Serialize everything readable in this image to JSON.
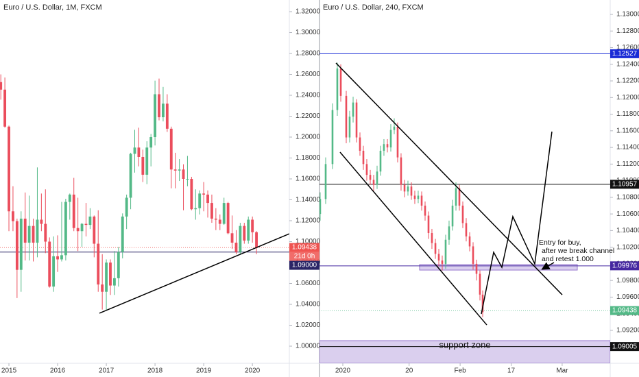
{
  "chart_data": [
    {
      "type": "candlestick",
      "title": "Euro / U.S. Dollar, 1M, FXCM",
      "x": [
        -2,
        -1,
        0,
        1,
        2,
        3,
        4,
        5,
        6,
        7,
        8,
        9,
        10,
        11,
        12,
        13,
        14,
        15,
        16,
        17,
        18,
        19,
        20,
        21,
        22,
        23,
        24,
        25,
        26,
        27,
        28,
        29,
        30,
        31,
        32,
        33,
        34,
        35,
        36,
        37,
        38,
        39,
        40,
        41,
        42,
        43,
        44,
        45,
        46,
        47,
        48,
        49,
        50,
        51,
        52,
        53,
        54,
        55,
        56,
        57,
        58,
        59,
        60,
        61
      ],
      "open": [
        1.2526,
        1.2454,
        1.21,
        1.129,
        1.1196,
        1.073,
        1.122,
        1.099,
        1.115,
        1.099,
        1.121,
        1.117,
        1.1,
        1.057,
        1.086,
        1.083,
        1.087,
        1.138,
        1.145,
        1.113,
        1.11,
        1.117,
        1.116,
        1.124,
        1.098,
        1.059,
        1.052,
        1.08,
        1.058,
        1.065,
        1.09,
        1.124,
        1.142,
        1.184,
        1.19,
        1.181,
        1.164,
        1.19,
        1.2,
        1.241,
        1.219,
        1.232,
        1.208,
        1.169,
        1.168,
        1.169,
        1.16,
        1.16,
        1.131,
        1.132,
        1.146,
        1.145,
        1.137,
        1.122,
        1.121,
        1.117,
        1.137,
        1.108,
        1.099,
        1.09,
        1.115,
        1.101,
        1.121,
        1.109
      ],
      "high": [
        1.26,
        1.257,
        1.211,
        1.153,
        1.122,
        1.129,
        1.147,
        1.144,
        1.122,
        1.171,
        1.146,
        1.15,
        1.104,
        1.105,
        1.106,
        1.138,
        1.141,
        1.146,
        1.161,
        1.142,
        1.118,
        1.137,
        1.132,
        1.125,
        1.13,
        1.088,
        1.083,
        1.083,
        1.091,
        1.095,
        1.127,
        1.145,
        1.185,
        1.207,
        1.209,
        1.188,
        1.196,
        1.203,
        1.254,
        1.256,
        1.248,
        1.241,
        1.21,
        1.185,
        1.179,
        1.174,
        1.182,
        1.162,
        1.15,
        1.149,
        1.157,
        1.149,
        1.145,
        1.132,
        1.126,
        1.142,
        1.138,
        1.125,
        1.111,
        1.118,
        1.118,
        1.124,
        1.124,
        1.11
      ],
      "low": [
        1.2358,
        1.209,
        1.11,
        1.11,
        1.046,
        1.052,
        1.082,
        1.082,
        1.081,
        1.085,
        1.11,
        1.089,
        1.056,
        1.052,
        1.071,
        1.081,
        1.082,
        1.121,
        1.11,
        1.091,
        1.095,
        1.105,
        1.112,
        1.085,
        1.052,
        1.035,
        1.034,
        1.049,
        1.049,
        1.057,
        1.084,
        1.112,
        1.131,
        1.166,
        1.172,
        1.157,
        1.155,
        1.172,
        1.192,
        1.216,
        1.215,
        1.205,
        1.151,
        1.151,
        1.158,
        1.13,
        1.153,
        1.13,
        1.121,
        1.126,
        1.129,
        1.123,
        1.118,
        1.111,
        1.111,
        1.116,
        1.107,
        1.093,
        1.088,
        1.088,
        1.098,
        1.098,
        1.099,
        1.088
      ],
      "close": [
        1.2454,
        1.21,
        1.129,
        1.1196,
        1.073,
        1.122,
        1.099,
        1.115,
        1.099,
        1.121,
        1.117,
        1.1,
        1.057,
        1.086,
        1.083,
        1.087,
        1.138,
        1.145,
        1.113,
        1.11,
        1.117,
        1.116,
        1.124,
        1.098,
        1.059,
        1.052,
        1.08,
        1.058,
        1.065,
        1.09,
        1.124,
        1.142,
        1.184,
        1.19,
        1.181,
        1.164,
        1.19,
        1.2,
        1.241,
        1.219,
        1.232,
        1.208,
        1.169,
        1.168,
        1.169,
        1.16,
        1.16,
        1.131,
        1.132,
        1.146,
        1.145,
        1.137,
        1.122,
        1.121,
        1.117,
        1.137,
        1.108,
        1.099,
        1.09,
        1.115,
        1.101,
        1.121,
        1.109,
        1.0944
      ],
      "up_color": "#53b987",
      "down_color": "#eb4d5c",
      "xlim": [
        -2.2,
        69.1
      ],
      "ylim": [
        0.98361,
        1.33115
      ],
      "xticks": [
        {
          "value": 0,
          "label": "2015"
        },
        {
          "value": 12,
          "label": "2016"
        },
        {
          "value": 24,
          "label": "2017"
        },
        {
          "value": 36,
          "label": "2018"
        },
        {
          "value": 48,
          "label": "2019"
        },
        {
          "value": 60,
          "label": "2020"
        }
      ],
      "yticks": [
        {
          "value": 1.0,
          "label": "1.00000"
        },
        {
          "value": 1.02,
          "label": "1.02000"
        },
        {
          "value": 1.04,
          "label": "1.04000"
        },
        {
          "value": 1.06,
          "label": "1.06000"
        },
        {
          "value": 1.08,
          "label": "1.08000"
        },
        {
          "value": 1.1,
          "label": "1.10000"
        },
        {
          "value": 1.12,
          "label": "1.12000"
        },
        {
          "value": 1.14,
          "label": "1.14000"
        },
        {
          "value": 1.16,
          "label": "1.16000"
        },
        {
          "value": 1.18,
          "label": "1.18000"
        },
        {
          "value": 1.2,
          "label": "1.20000"
        },
        {
          "value": 1.22,
          "label": "1.22000"
        },
        {
          "value": 1.24,
          "label": "1.24000"
        },
        {
          "value": 1.26,
          "label": "1.26000"
        },
        {
          "value": 1.28,
          "label": "1.28000"
        },
        {
          "value": 1.3,
          "label": "1.30000"
        },
        {
          "value": 1.32,
          "label": "1.32000"
        }
      ],
      "levels": [
        {
          "value": 1.09438,
          "color": "#ef5350",
          "style": "dotted",
          "countdown": "21d 0h"
        },
        {
          "value": 1.09,
          "label": "1.09000",
          "color": "#2a2566"
        }
      ],
      "drawings": [
        {
          "x": [
            22.3,
            69.1
          ],
          "y": [
            1.0315,
            1.1075
          ],
          "color": "#000000"
        }
      ]
    },
    {
      "type": "candlestick",
      "title": "Euro / U.S. Dollar, 240, FXCM",
      "x": [
        -4.44,
        -3.36,
        -2.02,
        -1.08,
        -0.4,
        0.67,
        1.34,
        2.02,
        2.69,
        3.36,
        4.03,
        4.7,
        5.38,
        6.05,
        6.72,
        7.39,
        8.06,
        8.74,
        9.41,
        10.08,
        10.75,
        11.42,
        12.1,
        12.77,
        13.44,
        14.11,
        14.78,
        15.46,
        16.13,
        16.8,
        17.47,
        18.15,
        18.82,
        19.49,
        20.16,
        20.83,
        21.51,
        22.18,
        22.85,
        23.52,
        24.19,
        24.87,
        25.54,
        26.21,
        26.88,
        27.42
      ],
      "open": [
        1.106,
        1.1078,
        1.112,
        1.1185,
        1.1235,
        1.1202,
        1.1152,
        1.1177,
        1.1194,
        1.1152,
        1.1136,
        1.112,
        1.1107,
        1.1101,
        1.1095,
        1.1111,
        1.1136,
        1.1144,
        1.114,
        1.1161,
        1.1165,
        1.1128,
        1.1095,
        1.1087,
        1.1093,
        1.1082,
        1.1078,
        1.1082,
        1.107,
        1.1058,
        1.1037,
        1.1025,
        1.1012,
        1.1004,
        1.1,
        1.1029,
        1.1045,
        1.107,
        1.1091,
        1.107,
        1.1049,
        1.1033,
        1.1021,
        1.1,
        1.0988,
        1.0963
      ],
      "high": [
        1.1086,
        1.1128,
        1.1193,
        1.1242,
        1.124,
        1.1208,
        1.1184,
        1.1201,
        1.1198,
        1.1158,
        1.1142,
        1.1126,
        1.1113,
        1.1107,
        1.1118,
        1.1142,
        1.115,
        1.115,
        1.1168,
        1.1175,
        1.117,
        1.1133,
        1.1101,
        1.11,
        1.1098,
        1.1088,
        1.1088,
        1.1087,
        1.1075,
        1.1063,
        1.1042,
        1.103,
        1.1018,
        1.101,
        1.1035,
        1.1052,
        1.1077,
        1.1098,
        1.1095,
        1.1075,
        1.1055,
        1.1038,
        1.1026,
        1.1005,
        1.0992,
        1.0968
      ],
      "low": [
        1.1052,
        1.1072,
        1.1114,
        1.1178,
        1.1195,
        1.1145,
        1.1146,
        1.117,
        1.1146,
        1.113,
        1.1113,
        1.11,
        1.1095,
        1.1088,
        1.109,
        1.1106,
        1.113,
        1.1134,
        1.1135,
        1.1156,
        1.1122,
        1.1088,
        1.108,
        1.1082,
        1.1077,
        1.1072,
        1.1073,
        1.1064,
        1.1052,
        1.103,
        1.1018,
        1.1006,
        1.0997,
        1.0992,
        1.0994,
        1.1023,
        1.104,
        1.1064,
        1.1064,
        1.1043,
        1.1027,
        1.1015,
        1.0993,
        1.098,
        1.0956,
        1.0936
      ],
      "close": [
        1.1078,
        1.112,
        1.1185,
        1.1235,
        1.1202,
        1.1152,
        1.1177,
        1.1194,
        1.1152,
        1.1136,
        1.112,
        1.1107,
        1.1101,
        1.1095,
        1.1111,
        1.1136,
        1.1144,
        1.114,
        1.1161,
        1.1165,
        1.1128,
        1.1095,
        1.1087,
        1.1093,
        1.1082,
        1.1078,
        1.1082,
        1.107,
        1.1058,
        1.1037,
        1.1025,
        1.1012,
        1.1004,
        1.1,
        1.1029,
        1.1045,
        1.107,
        1.1091,
        1.107,
        1.1049,
        1.1033,
        1.1021,
        1.1,
        1.0988,
        1.0963,
        1.0942
      ],
      "up_color": "#53b987",
      "down_color": "#eb4d5c",
      "xlim": [
        -4.57,
        52.42
      ],
      "ylim": [
        1.08804,
        1.13173
      ],
      "xticks": [
        {
          "value": 0,
          "label": "2020"
        },
        {
          "value": 13,
          "label": "20"
        },
        {
          "value": 23,
          "label": "Feb"
        },
        {
          "value": 33,
          "label": "17"
        },
        {
          "value": 43,
          "label": "Mar"
        }
      ],
      "yticks": [
        {
          "value": 1.092,
          "label": "1.09200"
        },
        {
          "value": 1.094,
          "label": "1.09400"
        },
        {
          "value": 1.096,
          "label": "1.09600"
        },
        {
          "value": 1.098,
          "label": "1.09800"
        },
        {
          "value": 1.1,
          "label": "1.10000"
        },
        {
          "value": 1.102,
          "label": "1.10200"
        },
        {
          "value": 1.104,
          "label": "1.10400"
        },
        {
          "value": 1.106,
          "label": "1.10600"
        },
        {
          "value": 1.108,
          "label": "1.10800"
        },
        {
          "value": 1.11,
          "label": "1.11000"
        },
        {
          "value": 1.112,
          "label": "1.11200"
        },
        {
          "value": 1.114,
          "label": "1.11400"
        },
        {
          "value": 1.116,
          "label": "1.11600"
        },
        {
          "value": 1.118,
          "label": "1.11800"
        },
        {
          "value": 1.12,
          "label": "1.12000"
        },
        {
          "value": 1.122,
          "label": "1.12200"
        },
        {
          "value": 1.124,
          "label": "1.12400"
        },
        {
          "value": 1.126,
          "label": "1.12600"
        },
        {
          "value": 1.128,
          "label": "1.12800"
        },
        {
          "value": 1.13,
          "label": "1.13000"
        }
      ],
      "zones": [
        {
          "x": [
            15.05,
            45.97
          ],
          "y": [
            1.09925,
            1.09991
          ],
          "color": "#9575cd"
        },
        {
          "x": [
            -4.57,
            52.42
          ],
          "y": [
            1.08804,
            1.09076
          ],
          "color": "#9575cd",
          "label": "support zone"
        }
      ],
      "levels": [
        {
          "value": 1.12527,
          "color": "#1a2bd6"
        },
        {
          "value": 1.10957,
          "color": "#111111"
        },
        {
          "value": 1.09976,
          "color": "#4527a0"
        },
        {
          "value": 1.09438,
          "color": "#53b987",
          "style": "dotted"
        },
        {
          "value": 1.09005,
          "color": "#111111"
        }
      ],
      "drawings": [
        {
          "x": [
            -1.34,
            43.01
          ],
          "y": [
            1.12415,
            1.09628
          ],
          "color": "#000000"
        },
        {
          "x": [
            -0.54,
            28.23
          ],
          "y": [
            1.11343,
            1.09265
          ],
          "color": "#000000"
        },
        {
          "x": [
            27.15,
            29.57,
            31.18,
            33.33,
            37.63,
            40.99
          ],
          "y": [
            1.09397,
            1.10139,
            1.09958,
            1.10568,
            1.09999,
            1.1159
          ],
          "color": "#000000"
        },
        {
          "x": [
            41.4,
            39.25
          ],
          "y": [
            1.10016,
            1.09941
          ],
          "color": "#000000",
          "arrow": true
        }
      ],
      "note": [
        "Entry for buy,",
        "after we break channel",
        "and retest 1.000"
      ]
    }
  ]
}
